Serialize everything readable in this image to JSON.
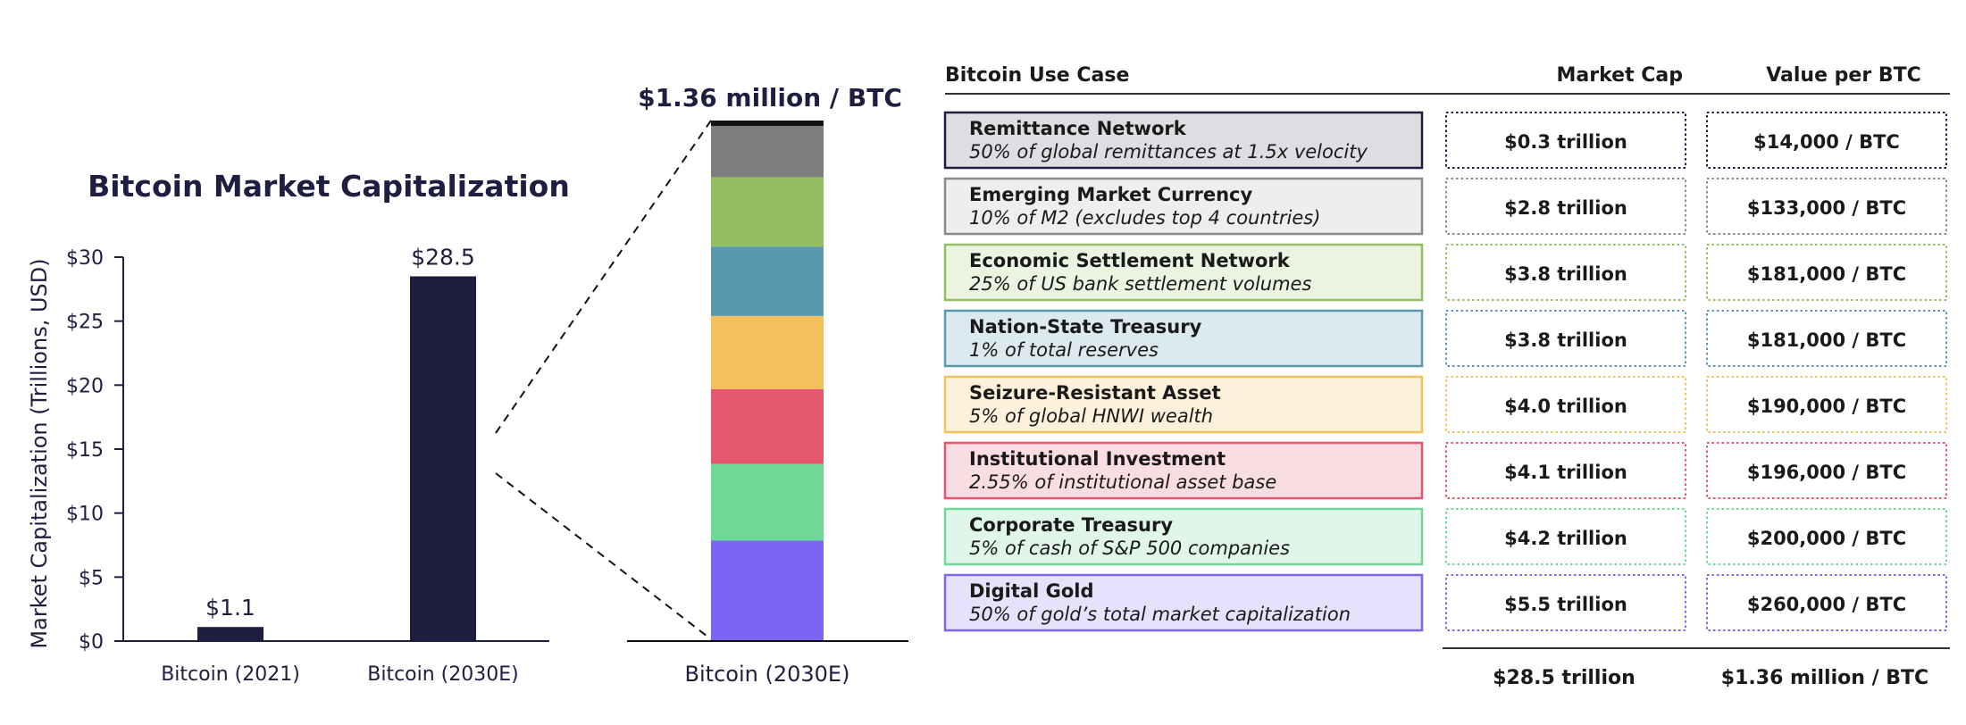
{
  "chart_data": [
    {
      "type": "bar",
      "title": "Bitcoin Market Capitalization",
      "ylabel": "Market Capitalization (Trillions, USD)",
      "xlabel": "",
      "categories": [
        "Bitcoin (2021)",
        "Bitcoin (2030E)"
      ],
      "values": [
        1.1,
        28.5
      ],
      "value_labels": [
        "$1.1",
        "$28.5"
      ],
      "ylim": [
        0,
        30
      ],
      "yticks": [
        0,
        5,
        10,
        15,
        20,
        25,
        30
      ],
      "ytick_labels": [
        "$0",
        "$5",
        "$10",
        "$15",
        "$20",
        "$25",
        "$30"
      ],
      "bar_color": "#1e1f40"
    },
    {
      "type": "stacked-bar",
      "title": "$1.36 million / BTC",
      "category": "Bitcoin (2030E)",
      "series": [
        {
          "name": "Digital Gold",
          "value": 5.5,
          "color": "#7a66f2"
        },
        {
          "name": "Corporate Treasury",
          "value": 4.2,
          "color": "#6ed897"
        },
        {
          "name": "Institutional Investment",
          "value": 4.1,
          "color": "#e5576f"
        },
        {
          "name": "Seizure-Resistant Asset",
          "value": 4.0,
          "color": "#f2c15c"
        },
        {
          "name": "Nation-State Treasury",
          "value": 3.8,
          "color": "#5a98ab"
        },
        {
          "name": "Economic Settlement Network",
          "value": 3.8,
          "color": "#93bf62"
        },
        {
          "name": "Emerging Market Currency",
          "value": 2.8,
          "color": "#7d7d7d"
        },
        {
          "name": "Remittance Network",
          "value": 0.3,
          "color": "#111111"
        }
      ],
      "total": 28.5
    },
    {
      "type": "table",
      "headers": {
        "use_case": "Bitcoin Use Case",
        "market_cap": "Market Cap",
        "value_per_btc": "Value per BTC"
      },
      "rows": [
        {
          "name": "Remittance Network",
          "desc": "50% of global remittances at 1.5x velocity",
          "market_cap": "$0.3 trillion",
          "value": "$14,000 / BTC",
          "color": "#1e1f40",
          "fill": "#dddde2"
        },
        {
          "name": "Emerging Market Currency",
          "desc": "10% of M2 (excludes top 4 countries)",
          "market_cap": "$2.8 trillion",
          "value": "$133,000 / BTC",
          "color": "#8a8a8f",
          "fill": "#eeeeef"
        },
        {
          "name": "Economic Settlement Network",
          "desc": "25% of US bank settlement volumes",
          "market_cap": "$3.8 trillion",
          "value": "$181,000 / BTC",
          "color": "#93bf62",
          "fill": "#ebf3e1"
        },
        {
          "name": "Nation-State Treasury",
          "desc": "1% of total reserves",
          "market_cap": "$3.8 trillion",
          "value": "$181,000 / BTC",
          "color": "#5a98ab",
          "fill": "#dce9ee"
        },
        {
          "name": "Seizure-Resistant Asset",
          "desc": "5% of global HNWI wealth",
          "market_cap": "$4.0 trillion",
          "value": "$190,000 / BTC",
          "color": "#f2c15c",
          "fill": "#fdf1dc"
        },
        {
          "name": "Institutional Investment",
          "desc": "2.55% of institutional asset base",
          "market_cap": "$4.1 trillion",
          "value": "$196,000 / BTC",
          "color": "#e5576f",
          "fill": "#f9dde2"
        },
        {
          "name": "Corporate Treasury",
          "desc": "5% of cash of S&P 500 companies",
          "market_cap": "$4.2 trillion",
          "value": "$200,000 / BTC",
          "color": "#6ed897",
          "fill": "#e0f6ea"
        },
        {
          "name": "Digital Gold",
          "desc": "50% of gold’s total market capitalization",
          "market_cap": "$5.5 trillion",
          "value": "$260,000 / BTC",
          "color": "#7a66f2",
          "fill": "#e6e2fc"
        }
      ],
      "totals": {
        "market_cap": "$28.5 trillion",
        "value": "$1.36 million / BTC"
      }
    }
  ]
}
